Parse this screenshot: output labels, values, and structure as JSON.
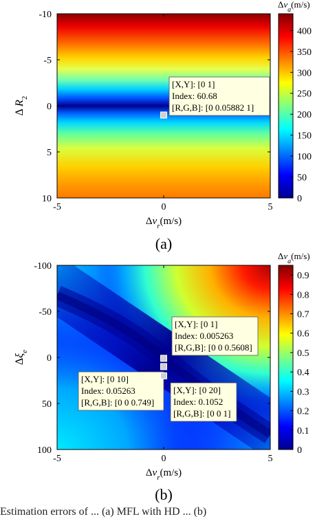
{
  "caption": "Estimation errors of ... (a) MFL with HD ... (b)",
  "chart_data": [
    {
      "type": "heatmap",
      "panel_label": "(a)",
      "xlabel": "Δv_r(m/s)",
      "ylabel": "Δ R_2",
      "colorbar_label": "Δv_a(m/s)",
      "xlim": [
        -5,
        5
      ],
      "ylim": [
        -10,
        10
      ],
      "y_reversed": true,
      "x_ticks": [
        "-5",
        "0",
        "5"
      ],
      "y_ticks": [
        "-10",
        "-5",
        "0",
        "5",
        "10"
      ],
      "colorbar_range": [
        0,
        440
      ],
      "colorbar_ticks": [
        "400",
        "350",
        "300",
        "250",
        "200",
        "150",
        "100",
        "50",
        "0"
      ],
      "colormap": "jet",
      "surface": "Δv_a varies with ΔR_2 only; minimum near ΔR_2 ≈ 0 and rising to ≈ 440 at ΔR_2 = ±10",
      "datatips": [
        {
          "x": 0,
          "y": 1,
          "lines": [
            "[X,Y]: [0 1]",
            "Index: 60.68",
            "[R,G,B]: [0 0.05882 1]"
          ]
        }
      ]
    },
    {
      "type": "heatmap",
      "panel_label": "(b)",
      "xlabel": "Δv_r(m/s)",
      "ylabel": "Δξ_e",
      "colorbar_label": "Δv_a(m/s)",
      "xlim": [
        -5,
        5
      ],
      "ylim": [
        -100,
        100
      ],
      "y_reversed": true,
      "x_ticks": [
        "-5",
        "0",
        "5"
      ],
      "y_ticks": [
        "-100",
        "-50",
        "0",
        "50",
        "100"
      ],
      "colorbar_range": [
        0,
        0.95
      ],
      "colorbar_ticks": [
        "0.9",
        "0.8",
        "0.7",
        "0.6",
        "0.5",
        "0.4",
        "0.3",
        "0.2",
        "0.1",
        "0"
      ],
      "colormap": "jet",
      "surface": "Dark-blue minimum valley running diagonally from upper-left to lower-right; maximum ≈ 0.95 at the top-right corner",
      "datatips": [
        {
          "x": 0,
          "y": 1,
          "lines": [
            "[X,Y]: [0 1]",
            "Index: 0.005263",
            "[R,G,B]: [0 0 0.5608]"
          ]
        },
        {
          "x": 0,
          "y": 10,
          "lines": [
            "[X,Y]: [0 10]",
            "Index: 0.05263",
            "[R,G,B]: [0 0 0.749]"
          ]
        },
        {
          "x": 0,
          "y": 20,
          "lines": [
            "[X,Y]: [0 20]",
            "Index: 0.1052",
            "[R,G,B]: [0 0 1]"
          ]
        }
      ]
    }
  ]
}
